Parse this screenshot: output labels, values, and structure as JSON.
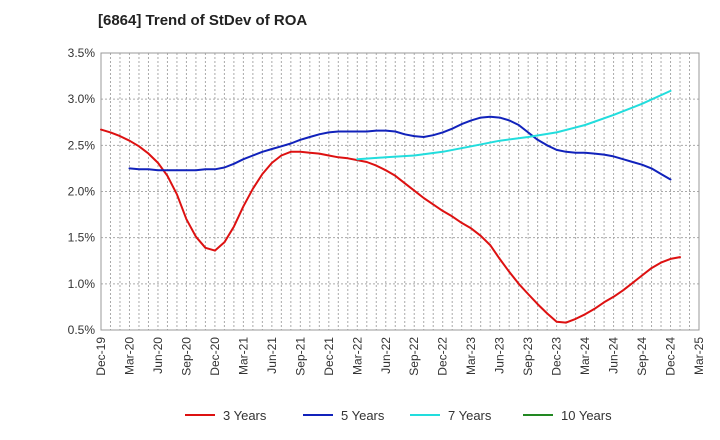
{
  "chart_data": {
    "type": "line",
    "title": "[6864]  Trend of StDev of ROA",
    "xlabel": "",
    "ylabel": "",
    "x_ticks": [
      "Dec-19",
      "Mar-20",
      "Jun-20",
      "Sep-20",
      "Dec-20",
      "Mar-21",
      "Jun-21",
      "Sep-21",
      "Dec-21",
      "Mar-22",
      "Jun-22",
      "Sep-22",
      "Dec-22",
      "Mar-23",
      "Jun-23",
      "Sep-23",
      "Dec-23",
      "Mar-24",
      "Jun-24",
      "Sep-24",
      "Dec-24",
      "Mar-25"
    ],
    "y_ticks": [
      "0.5%",
      "1.0%",
      "1.5%",
      "2.0%",
      "2.5%",
      "3.0%",
      "3.5%"
    ],
    "ylim": [
      0.5,
      3.5
    ],
    "grid": true,
    "legend_position": "bottom",
    "series": [
      {
        "name": "3 Years",
        "color": "#dd1111",
        "points": [
          [
            "Dec-19",
            2.67
          ],
          [
            "Jan-20",
            2.64
          ],
          [
            "Feb-20",
            2.6
          ],
          [
            "Mar-20",
            2.55
          ],
          [
            "Apr-20",
            2.49
          ],
          [
            "May-20",
            2.41
          ],
          [
            "Jun-20",
            2.31
          ],
          [
            "Jul-20",
            2.17
          ],
          [
            "Aug-20",
            1.97
          ],
          [
            "Sep-20",
            1.7
          ],
          [
            "Oct-20",
            1.51
          ],
          [
            "Nov-20",
            1.39
          ],
          [
            "Dec-20",
            1.36
          ],
          [
            "Jan-21",
            1.45
          ],
          [
            "Feb-21",
            1.62
          ],
          [
            "Mar-21",
            1.84
          ],
          [
            "Apr-21",
            2.03
          ],
          [
            "May-21",
            2.19
          ],
          [
            "Jun-21",
            2.31
          ],
          [
            "Jul-21",
            2.39
          ],
          [
            "Aug-21",
            2.43
          ],
          [
            "Sep-21",
            2.43
          ],
          [
            "Oct-21",
            2.42
          ],
          [
            "Nov-21",
            2.41
          ],
          [
            "Dec-21",
            2.39
          ],
          [
            "Jan-22",
            2.37
          ],
          [
            "Feb-22",
            2.36
          ],
          [
            "Mar-22",
            2.34
          ],
          [
            "Apr-22",
            2.32
          ],
          [
            "May-22",
            2.28
          ],
          [
            "Jun-22",
            2.23
          ],
          [
            "Jul-22",
            2.17
          ],
          [
            "Aug-22",
            2.09
          ],
          [
            "Sep-22",
            2.01
          ],
          [
            "Oct-22",
            1.93
          ],
          [
            "Nov-22",
            1.86
          ],
          [
            "Dec-22",
            1.79
          ],
          [
            "Jan-23",
            1.73
          ],
          [
            "Feb-23",
            1.66
          ],
          [
            "Mar-23",
            1.6
          ],
          [
            "Apr-23",
            1.52
          ],
          [
            "May-23",
            1.42
          ],
          [
            "Jun-23",
            1.27
          ],
          [
            "Jul-23",
            1.13
          ],
          [
            "Aug-23",
            1.0
          ],
          [
            "Sep-23",
            0.89
          ],
          [
            "Oct-23",
            0.78
          ],
          [
            "Nov-23",
            0.68
          ],
          [
            "Dec-23",
            0.59
          ],
          [
            "Jan-24",
            0.58
          ],
          [
            "Feb-24",
            0.62
          ],
          [
            "Mar-24",
            0.67
          ],
          [
            "Apr-24",
            0.73
          ],
          [
            "May-24",
            0.8
          ],
          [
            "Jun-24",
            0.86
          ],
          [
            "Jul-24",
            0.93
          ],
          [
            "Aug-24",
            1.01
          ],
          [
            "Sep-24",
            1.09
          ],
          [
            "Oct-24",
            1.17
          ],
          [
            "Nov-24",
            1.23
          ],
          [
            "Dec-24",
            1.27
          ],
          [
            "Jan-25",
            1.29
          ]
        ]
      },
      {
        "name": "5 Years",
        "color": "#1122bb",
        "points": [
          [
            "Mar-20",
            2.25
          ],
          [
            "Apr-20",
            2.24
          ],
          [
            "May-20",
            2.24
          ],
          [
            "Jun-20",
            2.23
          ],
          [
            "Jul-20",
            2.23
          ],
          [
            "Aug-20",
            2.23
          ],
          [
            "Sep-20",
            2.23
          ],
          [
            "Oct-20",
            2.23
          ],
          [
            "Nov-20",
            2.24
          ],
          [
            "Dec-20",
            2.24
          ],
          [
            "Jan-21",
            2.26
          ],
          [
            "Feb-21",
            2.3
          ],
          [
            "Mar-21",
            2.35
          ],
          [
            "Apr-21",
            2.39
          ],
          [
            "May-21",
            2.43
          ],
          [
            "Jun-21",
            2.46
          ],
          [
            "Jul-21",
            2.49
          ],
          [
            "Aug-21",
            2.52
          ],
          [
            "Sep-21",
            2.56
          ],
          [
            "Oct-21",
            2.59
          ],
          [
            "Nov-21",
            2.62
          ],
          [
            "Dec-21",
            2.64
          ],
          [
            "Jan-22",
            2.65
          ],
          [
            "Feb-22",
            2.65
          ],
          [
            "Mar-22",
            2.65
          ],
          [
            "Apr-22",
            2.65
          ],
          [
            "May-22",
            2.66
          ],
          [
            "Jun-22",
            2.66
          ],
          [
            "Jul-22",
            2.65
          ],
          [
            "Aug-22",
            2.62
          ],
          [
            "Sep-22",
            2.6
          ],
          [
            "Oct-22",
            2.59
          ],
          [
            "Nov-22",
            2.61
          ],
          [
            "Dec-22",
            2.64
          ],
          [
            "Jan-23",
            2.68
          ],
          [
            "Feb-23",
            2.73
          ],
          [
            "Mar-23",
            2.77
          ],
          [
            "Apr-23",
            2.8
          ],
          [
            "May-23",
            2.81
          ],
          [
            "Jun-23",
            2.8
          ],
          [
            "Jul-23",
            2.77
          ],
          [
            "Aug-23",
            2.72
          ],
          [
            "Sep-23",
            2.64
          ],
          [
            "Oct-23",
            2.56
          ],
          [
            "Nov-23",
            2.5
          ],
          [
            "Dec-23",
            2.45
          ],
          [
            "Jan-24",
            2.43
          ],
          [
            "Feb-24",
            2.42
          ],
          [
            "Mar-24",
            2.42
          ],
          [
            "Apr-24",
            2.41
          ],
          [
            "May-24",
            2.4
          ],
          [
            "Jun-24",
            2.38
          ],
          [
            "Jul-24",
            2.35
          ],
          [
            "Aug-24",
            2.32
          ],
          [
            "Sep-24",
            2.29
          ],
          [
            "Oct-24",
            2.25
          ],
          [
            "Nov-24",
            2.19
          ],
          [
            "Dec-24",
            2.13
          ]
        ]
      },
      {
        "name": "7 Years",
        "color": "#22dddd",
        "points": [
          [
            "Mar-22",
            2.35
          ],
          [
            "Jun-22",
            2.37
          ],
          [
            "Sep-22",
            2.39
          ],
          [
            "Dec-22",
            2.43
          ],
          [
            "Mar-23",
            2.49
          ],
          [
            "Jun-23",
            2.55
          ],
          [
            "Sep-23",
            2.59
          ],
          [
            "Dec-23",
            2.64
          ],
          [
            "Mar-24",
            2.72
          ],
          [
            "Jun-24",
            2.83
          ],
          [
            "Sep-24",
            2.95
          ],
          [
            "Dec-24",
            3.09
          ]
        ]
      },
      {
        "name": "10 Years",
        "color": "#228822",
        "points": []
      }
    ]
  }
}
